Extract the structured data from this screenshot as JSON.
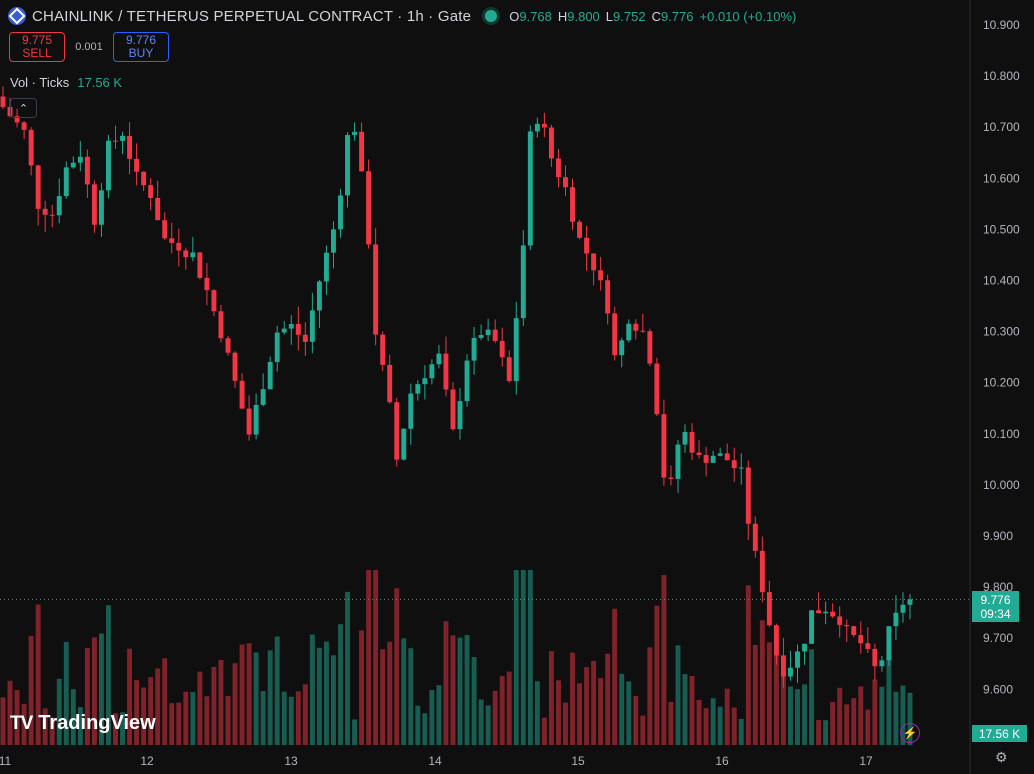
{
  "header": {
    "symbol_title": "CHAINLINK / TETHERUS PERPETUAL CONTRACT · 1h · Gate",
    "logo_icon": "chainlink-logo-icon",
    "ohlc": {
      "o_label": "O",
      "o": "9.768",
      "h_label": "H",
      "h": "9.800",
      "l_label": "L",
      "l": "9.752",
      "c_label": "C",
      "c": "9.776",
      "change": "+0.010 (+0.10%)"
    }
  },
  "trade": {
    "sell_price": "9.775",
    "sell_label": "SELL",
    "spread": "0.001",
    "buy_price": "9.776",
    "buy_label": "BUY"
  },
  "volume_legend": {
    "label": "Vol · Ticks",
    "value": "17.56 K"
  },
  "price_axis": {
    "last_price": "9.776",
    "countdown": "09:34",
    "volume_tag": "17.56 K"
  },
  "branding": {
    "name": "TradingView",
    "mark": "TV"
  },
  "colors": {
    "up": "#22ab94",
    "down": "#f23645",
    "background": "#0f0f0f"
  },
  "chart_data": {
    "type": "candlestick",
    "interval": "1h",
    "y_ticks": [
      "10.900",
      "10.800",
      "10.700",
      "10.600",
      "10.500",
      "10.400",
      "10.300",
      "10.200",
      "10.100",
      "10.000",
      "9.900",
      "9.800",
      "9.700",
      "9.600"
    ],
    "x_ticks": [
      "11",
      "12",
      "13",
      "14",
      "15",
      "16",
      "17"
    ],
    "ylim": [
      9.5,
      10.93
    ],
    "close_path": [
      [
        0,
        10.74
      ],
      [
        3,
        10.69
      ],
      [
        5,
        10.55
      ],
      [
        7,
        10.53
      ],
      [
        9,
        10.62
      ],
      [
        11,
        10.65
      ],
      [
        13,
        10.52
      ],
      [
        15,
        10.66
      ],
      [
        17,
        10.69
      ],
      [
        19,
        10.6
      ],
      [
        21,
        10.57
      ],
      [
        23,
        10.48
      ],
      [
        25,
        10.47
      ],
      [
        27,
        10.45
      ],
      [
        29,
        10.38
      ],
      [
        31,
        10.3
      ],
      [
        33,
        10.2
      ],
      [
        35,
        10.1
      ],
      [
        37,
        10.2
      ],
      [
        39,
        10.3
      ],
      [
        41,
        10.31
      ],
      [
        43,
        10.28
      ],
      [
        45,
        10.4
      ],
      [
        47,
        10.5
      ],
      [
        48,
        10.58
      ],
      [
        49,
        10.68
      ],
      [
        50,
        10.7
      ],
      [
        51,
        10.6
      ],
      [
        52,
        10.48
      ],
      [
        53,
        10.3
      ],
      [
        55,
        10.15
      ],
      [
        56,
        10.05
      ],
      [
        58,
        10.18
      ],
      [
        60,
        10.22
      ],
      [
        62,
        10.25
      ],
      [
        64,
        10.1
      ],
      [
        66,
        10.25
      ],
      [
        68,
        10.3
      ],
      [
        70,
        10.28
      ],
      [
        72,
        10.2
      ],
      [
        73,
        10.33
      ],
      [
        74,
        10.47
      ],
      [
        75,
        10.68
      ],
      [
        76,
        10.72
      ],
      [
        77,
        10.69
      ],
      [
        78,
        10.64
      ],
      [
        80,
        10.58
      ],
      [
        82,
        10.48
      ],
      [
        84,
        10.43
      ],
      [
        86,
        10.35
      ],
      [
        87,
        10.25
      ],
      [
        88,
        10.28
      ],
      [
        89,
        10.33
      ],
      [
        91,
        10.3
      ],
      [
        92,
        10.25
      ],
      [
        93,
        10.15
      ],
      [
        94,
        10.02
      ],
      [
        95,
        10.0
      ],
      [
        96,
        10.08
      ],
      [
        97,
        10.1
      ],
      [
        99,
        10.05
      ],
      [
        101,
        10.06
      ],
      [
        103,
        10.05
      ],
      [
        105,
        10.02
      ],
      [
        106,
        9.93
      ],
      [
        107,
        9.86
      ],
      [
        108,
        9.8
      ],
      [
        109,
        9.73
      ],
      [
        110,
        9.67
      ],
      [
        111,
        9.64
      ],
      [
        112,
        9.65
      ],
      [
        113,
        9.67
      ],
      [
        114,
        9.7
      ],
      [
        115,
        9.75
      ],
      [
        117,
        9.76
      ],
      [
        119,
        9.74
      ],
      [
        120,
        9.71
      ],
      [
        122,
        9.69
      ],
      [
        124,
        9.64
      ],
      [
        125,
        9.66
      ],
      [
        126,
        9.71
      ],
      [
        127,
        9.74
      ],
      [
        128,
        9.77
      ],
      [
        129,
        9.776
      ]
    ],
    "candle_count": 130,
    "volume_axis_value": "17.56 K",
    "last_price": 9.776
  }
}
